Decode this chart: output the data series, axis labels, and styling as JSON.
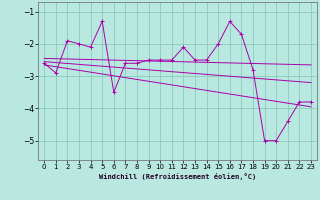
{
  "xlabel": "Windchill (Refroidissement éolien,°C)",
  "bg_color": "#b8e8e0",
  "grid_color": "#88ccbb",
  "line_color": "#aa00aa",
  "xlim": [
    -0.5,
    23.5
  ],
  "ylim": [
    -5.6,
    -0.7
  ],
  "yticks": [
    -5,
    -4,
    -3,
    -2,
    -1
  ],
  "xticks": [
    0,
    1,
    2,
    3,
    4,
    5,
    6,
    7,
    8,
    9,
    10,
    11,
    12,
    13,
    14,
    15,
    16,
    17,
    18,
    19,
    20,
    21,
    22,
    23
  ],
  "series1_x": [
    0,
    1,
    2,
    3,
    4,
    5,
    6,
    7,
    8,
    9,
    10,
    11,
    12,
    13,
    14,
    15,
    16,
    17,
    18,
    19,
    20,
    21,
    22,
    23
  ],
  "series1_y": [
    -2.6,
    -2.9,
    -1.9,
    -2.0,
    -2.1,
    -1.3,
    -3.5,
    -2.6,
    -2.6,
    -2.5,
    -2.5,
    -2.5,
    -2.1,
    -2.5,
    -2.5,
    -2.0,
    -1.3,
    -1.7,
    -2.8,
    -5.0,
    -5.0,
    -4.4,
    -3.8,
    -3.8
  ],
  "trend1_x": [
    0,
    23
  ],
  "trend1_y": [
    -2.55,
    -3.2
  ],
  "trend2_x": [
    0,
    23
  ],
  "trend2_y": [
    -2.65,
    -3.95
  ],
  "trend3_x": [
    0,
    23
  ],
  "trend3_y": [
    -2.45,
    -2.65
  ]
}
